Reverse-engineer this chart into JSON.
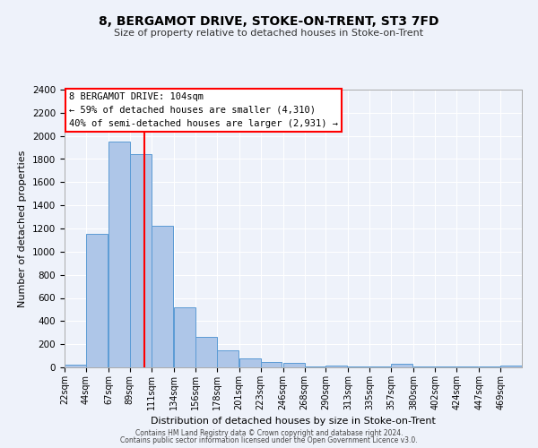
{
  "title": "8, BERGAMOT DRIVE, STOKE-ON-TRENT, ST3 7FD",
  "subtitle": "Size of property relative to detached houses in Stoke-on-Trent",
  "xlabel": "Distribution of detached houses by size in Stoke-on-Trent",
  "ylabel": "Number of detached properties",
  "bar_labels": [
    "22sqm",
    "44sqm",
    "67sqm",
    "89sqm",
    "111sqm",
    "134sqm",
    "156sqm",
    "178sqm",
    "201sqm",
    "223sqm",
    "246sqm",
    "268sqm",
    "290sqm",
    "313sqm",
    "335sqm",
    "357sqm",
    "380sqm",
    "402sqm",
    "424sqm",
    "447sqm",
    "469sqm"
  ],
  "bar_values": [
    25,
    1150,
    1950,
    1840,
    1220,
    520,
    265,
    150,
    75,
    45,
    35,
    8,
    15,
    5,
    5,
    30,
    5,
    5,
    5,
    5,
    15
  ],
  "bar_color": "#aec6e8",
  "bar_edge_color": "#5b9bd5",
  "vline_x": 104,
  "vline_color": "red",
  "ylim": [
    0,
    2400
  ],
  "yticks": [
    0,
    200,
    400,
    600,
    800,
    1000,
    1200,
    1400,
    1600,
    1800,
    2000,
    2200,
    2400
  ],
  "annotation_title": "8 BERGAMOT DRIVE: 104sqm",
  "annotation_line1": "← 59% of detached houses are smaller (4,310)",
  "annotation_line2": "40% of semi-detached houses are larger (2,931) →",
  "annotation_box_color": "#ffffff",
  "annotation_box_edge": "red",
  "footer1": "Contains HM Land Registry data © Crown copyright and database right 2024.",
  "footer2": "Contains public sector information licensed under the Open Government Licence v3.0.",
  "background_color": "#eef2fa",
  "grid_color": "#ffffff",
  "bin_starts": [
    22,
    44,
    67,
    89,
    111,
    134,
    156,
    178,
    201,
    223,
    246,
    268,
    290,
    313,
    335,
    357,
    380,
    402,
    424,
    447,
    469
  ],
  "bin_width": 22
}
